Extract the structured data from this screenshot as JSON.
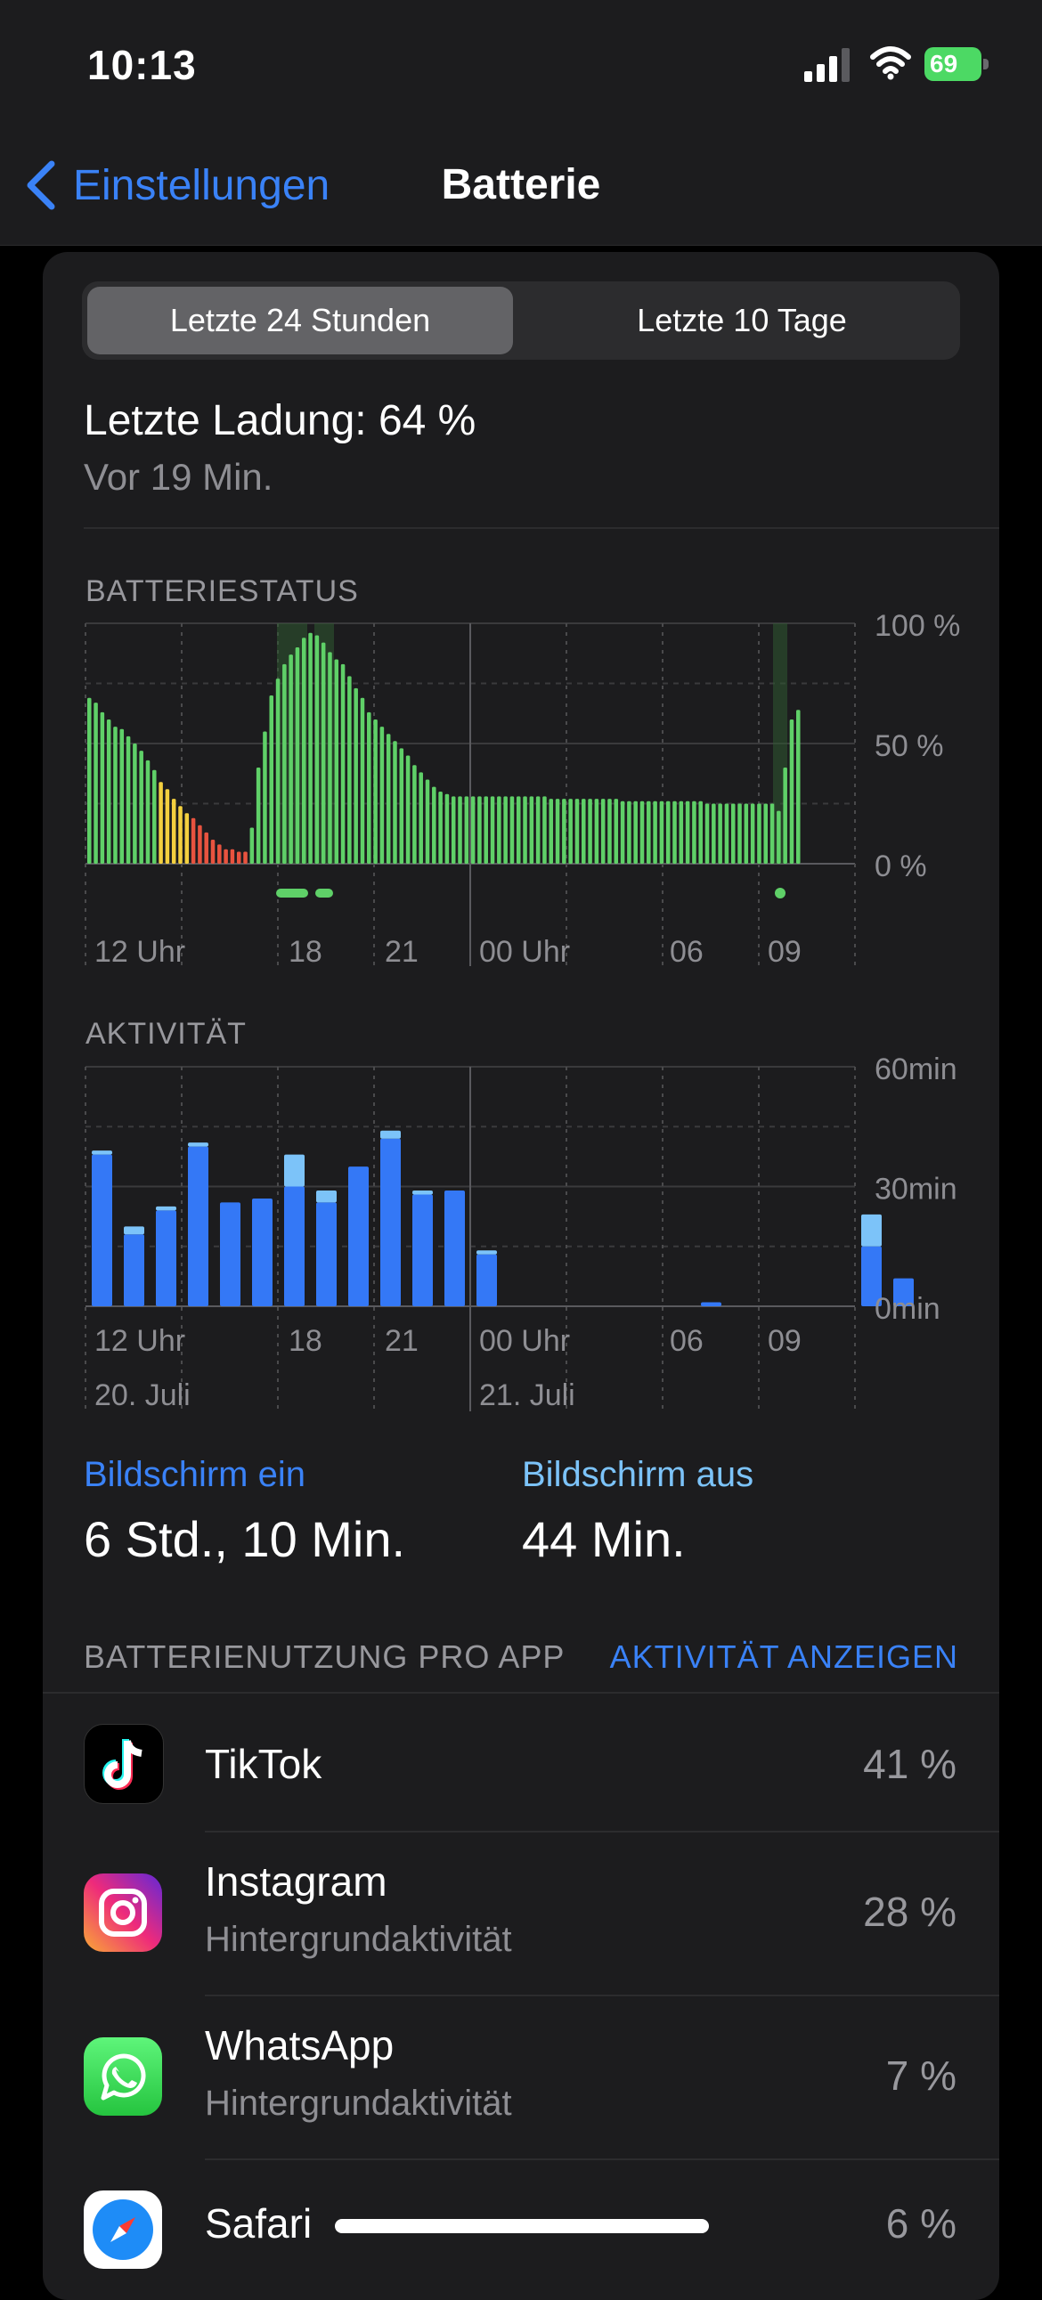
{
  "status_bar": {
    "time": "10:13",
    "battery_level": "69"
  },
  "nav": {
    "back_label": "Einstellungen",
    "title": "Batterie"
  },
  "segmented": {
    "options": [
      "Letzte 24 Stunden",
      "Letzte 10 Tage"
    ],
    "selected_index": 0
  },
  "last_charge": {
    "title": "Letzte Ladung: 64 %",
    "subtitle": "Vor 19 Min."
  },
  "battery_status": {
    "section_label": "BATTERIESTATUS",
    "y_ticks": [
      "100 %",
      "50 %",
      "0 %"
    ],
    "x_ticks": [
      "12 Uhr",
      "18",
      "21",
      "00 Uhr",
      "06",
      "09"
    ]
  },
  "activity": {
    "section_label": "AKTIVITÄT",
    "y_ticks": [
      "60min",
      "30min",
      "0min"
    ],
    "x_ticks": [
      "12 Uhr",
      "18",
      "21",
      "00 Uhr",
      "06",
      "09"
    ],
    "dates": [
      "20. Juli",
      "21. Juli"
    ]
  },
  "chart_data": [
    {
      "type": "bar",
      "title": "BATTERIESTATUS",
      "ylim": [
        0,
        100
      ],
      "y_unit": "%",
      "x_ticks": [
        "12 Uhr",
        "18",
        "21",
        "00 Uhr",
        "06",
        "09"
      ],
      "values": [
        69,
        67,
        63,
        60,
        57,
        56,
        53,
        50,
        47,
        43,
        39,
        34,
        31,
        27,
        24,
        21,
        19,
        16,
        13,
        10,
        8,
        6,
        6,
        5,
        5,
        15,
        40,
        55,
        70,
        77,
        83,
        87,
        90,
        94,
        96,
        95,
        92,
        88,
        85,
        83,
        78,
        73,
        69,
        63,
        60,
        57,
        54,
        51,
        48,
        45,
        41,
        38,
        35,
        32,
        30,
        29,
        28,
        28,
        28,
        28,
        28,
        28,
        28,
        28,
        28,
        28,
        28,
        28,
        28,
        28,
        28,
        27,
        27,
        27,
        27,
        27,
        27,
        27,
        27,
        27,
        27,
        27,
        26,
        26,
        26,
        26,
        26,
        26,
        26,
        26,
        26,
        26,
        26,
        26,
        26,
        25,
        25,
        25,
        25,
        25,
        25,
        25,
        25,
        25,
        25,
        25,
        22,
        40,
        60,
        64
      ],
      "charging_periods": [
        "17:30-19:00",
        "09:00-09:30"
      ]
    },
    {
      "type": "bar",
      "title": "AKTIVITÄT",
      "ylim": [
        0,
        60
      ],
      "y_unit": "min",
      "x_ticks": [
        "12 Uhr",
        "18",
        "21",
        "00 Uhr",
        "06",
        "09"
      ],
      "series": [
        {
          "values": [
            38,
            18,
            24,
            40,
            26,
            27,
            30,
            26,
            35,
            42,
            28,
            29,
            13,
            0,
            0,
            0,
            0,
            0,
            0,
            1,
            0,
            0,
            0,
            0,
            15,
            7
          ]
        },
        {
          "values": [
            1,
            2,
            1,
            1,
            0,
            0,
            8,
            3,
            0,
            2,
            1,
            0,
            1,
            0,
            0,
            0,
            0,
            0,
            0,
            0,
            0,
            0,
            0,
            0,
            8,
            0
          ]
        }
      ]
    }
  ],
  "screen": {
    "on_label": "Bildschirm ein",
    "on_value": "6 Std., 10 Min.",
    "off_label": "Bildschirm aus",
    "off_value": "44 Min."
  },
  "usage": {
    "header": "BATTERIENUTZUNG PRO APP",
    "link": "AKTIVITÄT ANZEIGEN",
    "apps": [
      {
        "name": "TikTok",
        "subtitle": "",
        "percent": "41 %",
        "icon": "tiktok-icon"
      },
      {
        "name": "Instagram",
        "subtitle": "Hintergrundaktivität",
        "percent": "28 %",
        "icon": "instagram-icon"
      },
      {
        "name": "WhatsApp",
        "subtitle": "Hintergrundaktivität",
        "percent": "7 %",
        "icon": "whatsapp-icon"
      },
      {
        "name": "Safari",
        "subtitle": "",
        "percent": "6 %",
        "icon": "safari-icon"
      }
    ]
  },
  "colors": {
    "accent": "#3a82f7",
    "battery_green": "#5fd068",
    "battery_yellow": "#f4d03f",
    "battery_red": "#e8533f",
    "activity_on": "#3478f6",
    "activity_off": "#7cc3f9"
  }
}
